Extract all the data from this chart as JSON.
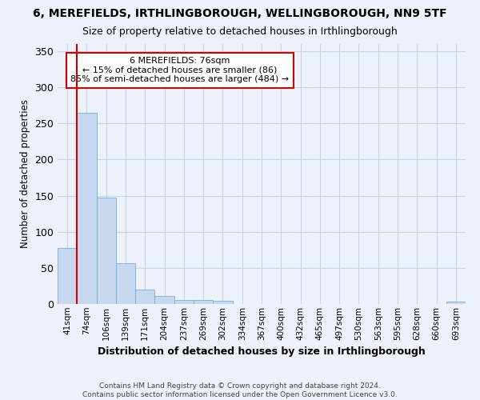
{
  "title": "6, MEREFIELDS, IRTHLINGBOROUGH, WELLINGBOROUGH, NN9 5TF",
  "subtitle": "Size of property relative to detached houses in Irthlingborough",
  "xlabel": "Distribution of detached houses by size in Irthlingborough",
  "ylabel": "Number of detached properties",
  "bar_color": "#c5d8f0",
  "bar_edge_color": "#7aadd4",
  "grid_color": "#c8d4e8",
  "background_color": "#edf2fa",
  "annotation_box_color": "#ffffff",
  "annotation_border_color": "#cc0000",
  "vline_color": "#cc0000",
  "footer_text": "Contains HM Land Registry data © Crown copyright and database right 2024.\nContains public sector information licensed under the Open Government Licence v3.0.",
  "annotation_line1": "6 MEREFIELDS: 76sqm",
  "annotation_line2": "← 15% of detached houses are smaller (86)",
  "annotation_line3": "85% of semi-detached houses are larger (484) →",
  "categories": [
    "41sqm",
    "74sqm",
    "106sqm",
    "139sqm",
    "171sqm",
    "204sqm",
    "237sqm",
    "269sqm",
    "302sqm",
    "334sqm",
    "367sqm",
    "400sqm",
    "432sqm",
    "465sqm",
    "497sqm",
    "530sqm",
    "563sqm",
    "595sqm",
    "628sqm",
    "660sqm",
    "693sqm"
  ],
  "values": [
    78,
    265,
    147,
    57,
    20,
    11,
    5,
    5,
    4,
    0,
    0,
    0,
    0,
    0,
    0,
    0,
    0,
    0,
    0,
    0,
    3
  ],
  "vline_x_index": 1,
  "ylim": [
    0,
    360
  ],
  "yticks": [
    0,
    50,
    100,
    150,
    200,
    250,
    300,
    350
  ]
}
